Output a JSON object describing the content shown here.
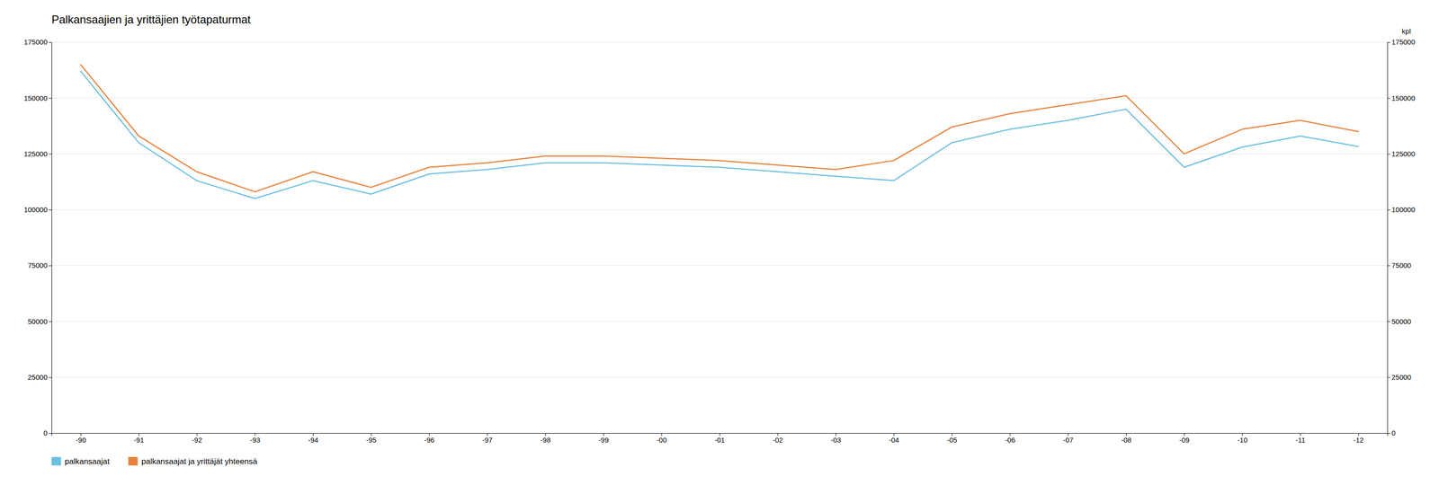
{
  "chart_data": {
    "type": "line",
    "title": "Palkansaajien ja yrittäjien työtapaturmat",
    "y2label": "kpl",
    "categories": [
      "-90",
      "-91",
      "-92",
      "-93",
      "-94",
      "-95",
      "-96",
      "-97",
      "-98",
      "-99",
      "-00",
      "-01",
      "-02",
      "-03",
      "-04",
      "-05",
      "-06",
      "-07",
      "-08",
      "-09",
      "-10",
      "-11",
      "-12"
    ],
    "series": [
      {
        "name": "palkansaajat",
        "color": "#6bbfe0",
        "values": [
          162000,
          130000,
          113000,
          105000,
          113000,
          107000,
          116000,
          118000,
          121000,
          121000,
          120000,
          119000,
          117000,
          115000,
          113000,
          130000,
          136000,
          140000,
          145000,
          119000,
          128000,
          133000,
          128264
        ]
      },
      {
        "name": "palkansaajat ja yrittäjät yhteensä",
        "color": "#e8823a",
        "values": [
          165000,
          133000,
          117000,
          108000,
          117000,
          110000,
          119000,
          121000,
          124000,
          124000,
          123000,
          122000,
          120000,
          118000,
          122000,
          137000,
          143000,
          147000,
          151000,
          125000,
          136000,
          140000,
          134961
        ]
      }
    ],
    "ylim": [
      0,
      175000
    ],
    "yticks": [
      0,
      25000,
      50000,
      75000,
      100000,
      125000,
      150000,
      175000
    ],
    "y2lim": [
      0,
      175000
    ],
    "y2ticks": [
      0,
      25000,
      50000,
      75000,
      100000,
      125000,
      150000,
      175000
    ],
    "grid": true,
    "legend": "bottom"
  }
}
